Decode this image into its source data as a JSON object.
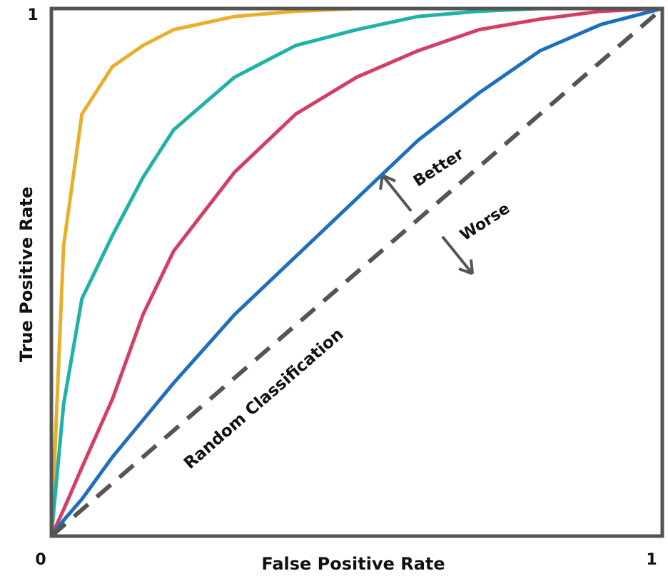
{
  "chart_data": {
    "type": "line",
    "x_label": "False Positive Rate",
    "y_label": "True Positive Rate",
    "x": [
      0,
      0.02,
      0.05,
      0.1,
      0.15,
      0.2,
      0.3,
      0.4,
      0.5,
      0.6,
      0.7,
      0.8,
      0.9,
      1
    ],
    "series": [
      {
        "color": "#e8b02a",
        "values": [
          0,
          0.55,
          0.8,
          0.89,
          0.93,
          0.96,
          0.985,
          0.995,
          1,
          1,
          1,
          1,
          1,
          1
        ]
      },
      {
        "color": "#1fb2a6",
        "values": [
          0,
          0.25,
          0.45,
          0.57,
          0.68,
          0.77,
          0.87,
          0.93,
          0.96,
          0.985,
          0.995,
          1,
          1,
          1
        ]
      },
      {
        "color": "#d33f63",
        "values": [
          0,
          0.05,
          0.13,
          0.26,
          0.42,
          0.54,
          0.69,
          0.8,
          0.87,
          0.92,
          0.96,
          0.98,
          0.995,
          1
        ]
      },
      {
        "color": "#1f6fbf",
        "values": [
          0,
          0.03,
          0.07,
          0.15,
          0.22,
          0.29,
          0.42,
          0.53,
          0.64,
          0.75,
          0.84,
          0.92,
          0.97,
          1
        ]
      },
      {
        "color": "#555555",
        "dash": true,
        "values": [
          0,
          0.02,
          0.05,
          0.1,
          0.15,
          0.2,
          0.3,
          0.4,
          0.5,
          0.6,
          0.7,
          0.8,
          0.9,
          1
        ]
      }
    ],
    "annotations": [
      "Better",
      "Worse",
      "Random Classification"
    ],
    "xlim": [
      0,
      1
    ],
    "ylim": [
      0,
      1
    ],
    "xticks": [
      0,
      1
    ],
    "yticks": [
      1
    ]
  }
}
